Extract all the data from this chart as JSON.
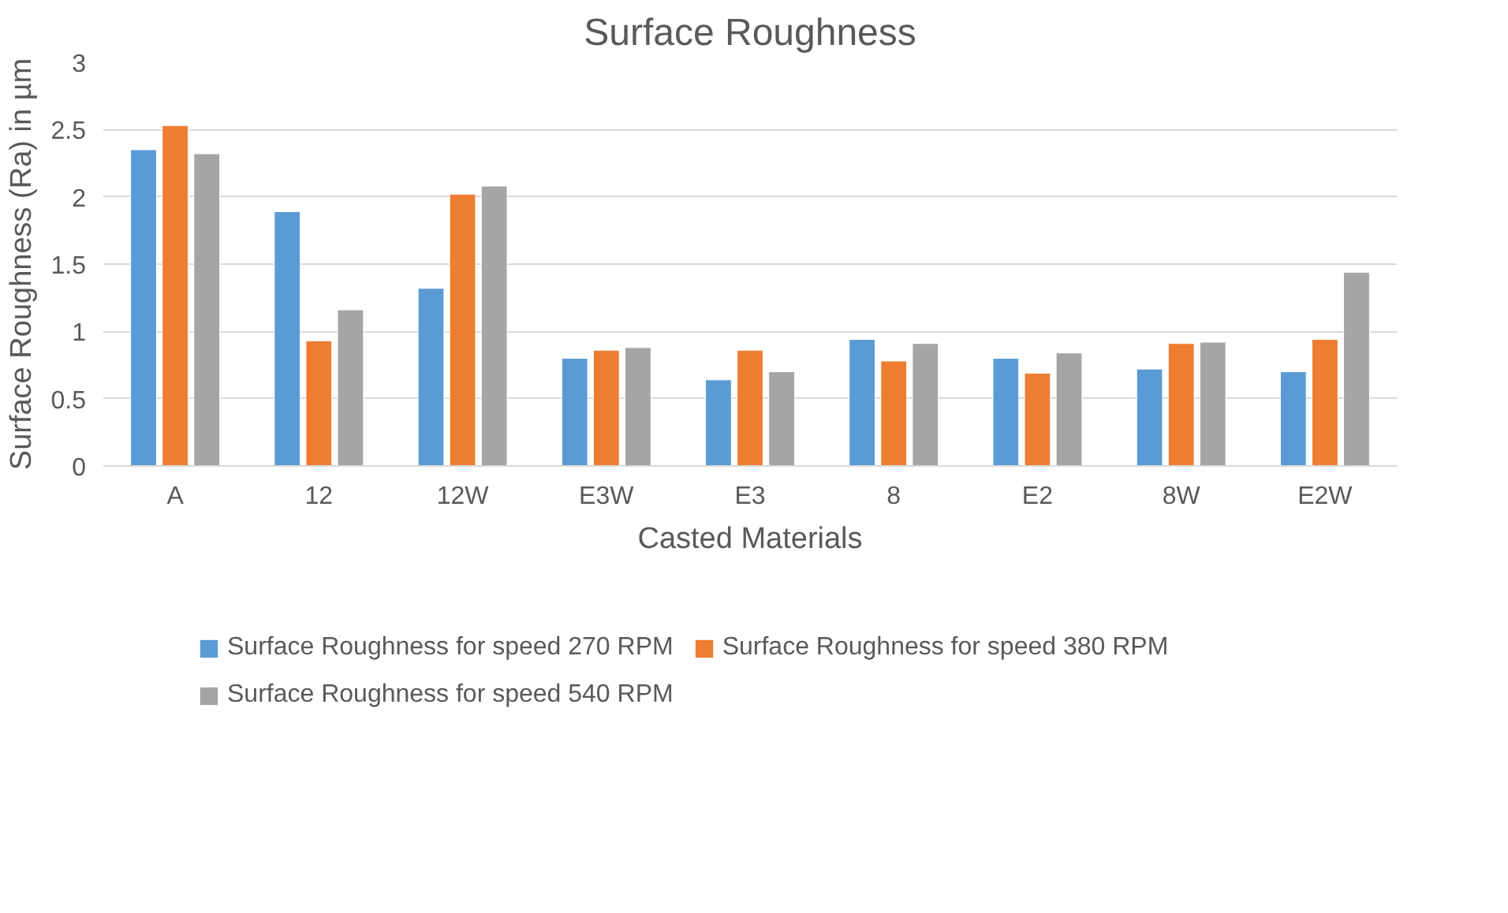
{
  "chart_data": {
    "type": "bar",
    "title": "Surface Roughness",
    "xlabel": "Casted Materials",
    "ylabel": "Surface Roughness (Ra) in µm",
    "categories": [
      "A",
      "12",
      "12W",
      "E3W",
      "E3",
      "8",
      "E2",
      "8W",
      "E2W"
    ],
    "series": [
      {
        "name": "Surface Roughness for speed 270 RPM",
        "color": "#5b9bd5",
        "values": [
          2.35,
          1.89,
          1.32,
          0.8,
          0.64,
          0.94,
          0.8,
          0.72,
          0.7
        ]
      },
      {
        "name": "Surface Roughness for speed 380 RPM",
        "color": "#ed7d31",
        "values": [
          2.53,
          0.93,
          2.02,
          0.86,
          0.86,
          0.78,
          0.69,
          0.91,
          0.94
        ]
      },
      {
        "name": "Surface Roughness for speed 540 RPM",
        "color": "#a5a5a5",
        "values": [
          2.32,
          1.16,
          2.08,
          0.88,
          0.7,
          0.91,
          0.84,
          0.92,
          1.44
        ]
      }
    ],
    "ylim": [
      0,
      3
    ],
    "yticks": [
      0,
      0.5,
      1,
      1.5,
      2,
      2.5,
      3
    ],
    "grid": "y",
    "legend": "bottom"
  }
}
